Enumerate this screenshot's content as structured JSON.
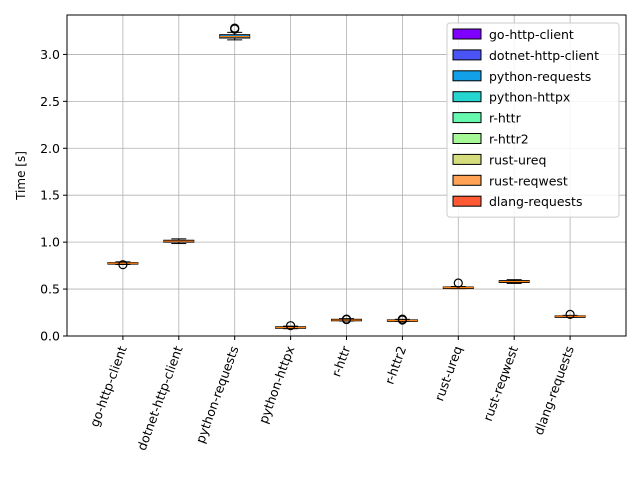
{
  "chart_data": {
    "type": "boxplot",
    "title": "",
    "xlabel": "",
    "ylabel": "Time [s]",
    "ylim": [
      0,
      3.42
    ],
    "yticks": [
      0.0,
      0.5,
      1.0,
      1.5,
      2.0,
      2.5,
      3.0
    ],
    "ytick_labels": [
      "0.0",
      "0.5",
      "1.0",
      "1.5",
      "2.0",
      "2.5",
      "3.0"
    ],
    "grid": true,
    "legend_position": "top-right",
    "xtick_rotation_deg": 70,
    "categories": [
      "go-http-client",
      "dotnet-http-client",
      "python-requests",
      "python-httpx",
      "r-httr",
      "r-httr2",
      "rust-ureq",
      "rust-reqwest",
      "dlang-requests"
    ],
    "series": [
      {
        "name": "go-http-client",
        "color": "#8000ff",
        "median": 0.775,
        "q1": 0.768,
        "q3": 0.782,
        "whisker_low": 0.762,
        "whisker_high": 0.79,
        "outliers": [
          0.76
        ]
      },
      {
        "name": "dotnet-http-client",
        "color": "#4a54f5",
        "median": 1.01,
        "q1": 1.0,
        "q3": 1.02,
        "whisker_low": 0.985,
        "whisker_high": 1.035,
        "outliers": []
      },
      {
        "name": "python-requests",
        "color": "#12a0e8",
        "median": 3.19,
        "q1": 3.175,
        "q3": 3.21,
        "whisker_low": 3.155,
        "whisker_high": 3.235,
        "outliers": [
          3.28,
          3.27
        ]
      },
      {
        "name": "python-httpx",
        "color": "#24d5d0",
        "median": 0.09,
        "q1": 0.085,
        "q3": 0.098,
        "whisker_low": 0.078,
        "whisker_high": 0.105,
        "outliers": [
          0.11
        ]
      },
      {
        "name": "r-httr",
        "color": "#67f8b0",
        "median": 0.17,
        "q1": 0.165,
        "q3": 0.178,
        "whisker_low": 0.16,
        "whisker_high": 0.185,
        "outliers": [
          0.18,
          0.175
        ]
      },
      {
        "name": "r-httr2",
        "color": "#a6f896",
        "median": 0.165,
        "q1": 0.16,
        "q3": 0.172,
        "whisker_low": 0.155,
        "whisker_high": 0.178,
        "outliers": [
          0.18,
          0.17
        ]
      },
      {
        "name": "rust-ureq",
        "color": "#d5dc7e",
        "median": 0.515,
        "q1": 0.51,
        "q3": 0.522,
        "whisker_low": 0.505,
        "whisker_high": 0.527,
        "outliers": [
          0.565
        ]
      },
      {
        "name": "rust-reqwest",
        "color": "#ffa256",
        "median": 0.58,
        "q1": 0.57,
        "q3": 0.59,
        "whisker_low": 0.56,
        "whisker_high": 0.6,
        "outliers": []
      },
      {
        "name": "dlang-requests",
        "color": "#ff5a33",
        "median": 0.21,
        "q1": 0.205,
        "q3": 0.215,
        "whisker_low": 0.2,
        "whisker_high": 0.22,
        "outliers": [
          0.23
        ]
      }
    ],
    "median_color": "#ff7f0e"
  }
}
